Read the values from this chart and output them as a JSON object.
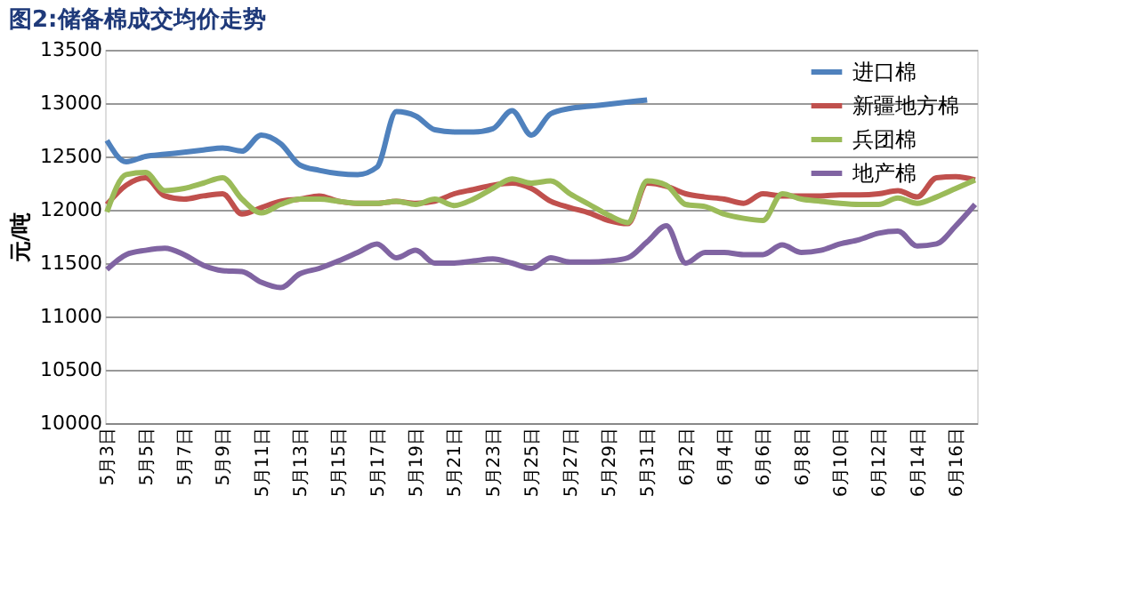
{
  "chart_data": {
    "type": "line",
    "title": "图2:储备棉成交均价走势",
    "ylabel": "元/吨",
    "categories": [
      "5月3日",
      null,
      "5月5日",
      null,
      "5月7日",
      null,
      "5月9日",
      null,
      "5月11日",
      null,
      "5月13日",
      null,
      "5月15日",
      null,
      "5月17日",
      null,
      "5月19日",
      null,
      "5月21日",
      null,
      "5月23日",
      null,
      "5月25日",
      null,
      "5月27日",
      null,
      "5月29日",
      null,
      "5月31日",
      null,
      "6月2日",
      null,
      "6月4日",
      null,
      "6月6日",
      null,
      "6月8日",
      null,
      "6月10日",
      null,
      "6月12日",
      null,
      "6月14日",
      null,
      "6月16日",
      null
    ],
    "series": [
      {
        "name": "进口棉",
        "color": "#4f81bd",
        "values": [
          12650,
          12450,
          12500,
          12520,
          12540,
          12560,
          12580,
          12550,
          12700,
          12620,
          12420,
          12370,
          12340,
          12330,
          12400,
          12920,
          12880,
          12750,
          12730,
          12730,
          12760,
          12930,
          12700,
          12900,
          12950,
          12970,
          12990,
          13010,
          13030,
          null,
          null,
          null,
          null,
          null,
          null,
          null,
          null,
          null,
          null,
          null,
          null,
          null,
          null,
          null,
          null,
          null
        ]
      },
      {
        "name": "新疆地方棉",
        "color": "#c0504d",
        "values": [
          12050,
          12230,
          12300,
          12130,
          12100,
          12130,
          12150,
          11960,
          12020,
          12080,
          12100,
          12130,
          12080,
          12060,
          12060,
          12080,
          12060,
          12080,
          12150,
          12190,
          12230,
          12250,
          12200,
          12080,
          12020,
          11970,
          11900,
          11870,
          12250,
          12220,
          12150,
          12120,
          12100,
          12060,
          12150,
          12130,
          12130,
          12130,
          12140,
          12140,
          12150,
          12180,
          12120,
          12300,
          12310,
          12280
        ]
      },
      {
        "name": "兵团棉",
        "color": "#9bbb59",
        "values": [
          11980,
          12330,
          12350,
          12180,
          12200,
          12250,
          12300,
          12100,
          11970,
          12050,
          12100,
          12100,
          12080,
          12060,
          12060,
          12080,
          12050,
          12100,
          12040,
          12100,
          12200,
          12290,
          12250,
          12270,
          12150,
          12050,
          11950,
          11880,
          12270,
          12230,
          12050,
          12030,
          11960,
          11920,
          11900,
          12150,
          12100,
          12080,
          12060,
          12050,
          12050,
          12110,
          12060,
          12120,
          12200,
          12280
        ]
      },
      {
        "name": "地产棉",
        "color": "#8064a2",
        "values": [
          11440,
          11580,
          11620,
          11640,
          11580,
          11480,
          11430,
          11420,
          11320,
          11270,
          11400,
          11450,
          11520,
          11600,
          11680,
          11550,
          11620,
          11500,
          11500,
          11520,
          11540,
          11500,
          11450,
          11550,
          11510,
          11510,
          11520,
          11550,
          11700,
          11850,
          11500,
          11600,
          11600,
          11580,
          11580,
          11670,
          11600,
          11620,
          11680,
          11720,
          11780,
          11800,
          11660,
          11680,
          11850,
          12050
        ]
      }
    ],
    "ylim": [
      10000,
      13500
    ],
    "yticks": [
      10000,
      10500,
      11000,
      11500,
      12000,
      12500,
      13000,
      13500
    ],
    "grid": "y",
    "legend": "top right",
    "marker": "none",
    "line_style": "solid"
  }
}
